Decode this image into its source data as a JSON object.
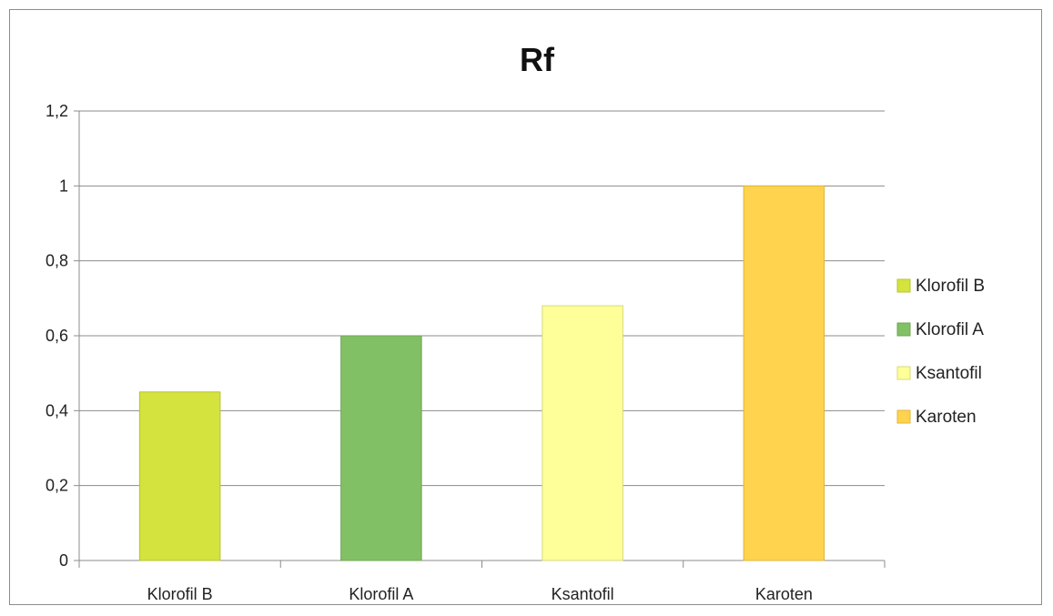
{
  "chart_data": {
    "type": "bar",
    "title": "Rf",
    "categories": [
      "Klorofil B",
      "Klorofil A",
      "Ksantofil",
      "Karoten"
    ],
    "values": [
      0.45,
      0.6,
      0.68,
      1.0
    ],
    "colors": [
      "#d4e33d",
      "#82c066",
      "#ffff99",
      "#ffd34d"
    ],
    "border_colors": [
      "#b6c42f",
      "#6da653",
      "#d9d97d",
      "#e0b53a"
    ],
    "ylim": [
      0,
      1.2
    ],
    "yticks": [
      "0",
      "0,2",
      "0,4",
      "0,6",
      "0,8",
      "1",
      "1,2"
    ],
    "grid": true,
    "legend": {
      "position": "right",
      "entries": [
        "Klorofil B",
        "Klorofil A",
        "Ksantofil",
        "Karoten"
      ]
    }
  }
}
